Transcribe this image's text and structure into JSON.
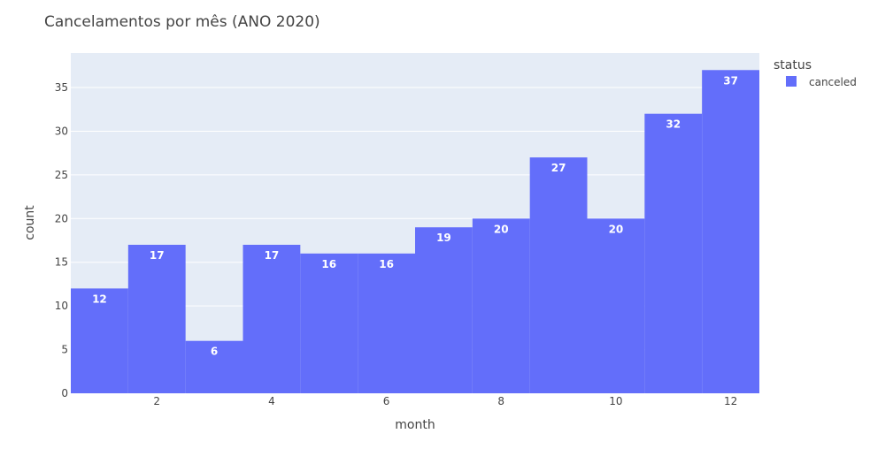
{
  "chart_data": {
    "type": "bar",
    "title": "Cancelamentos por mês (ANO 2020)",
    "xlabel": "month",
    "ylabel": "count",
    "categories": [
      1,
      2,
      3,
      4,
      5,
      6,
      7,
      8,
      9,
      10,
      11,
      12
    ],
    "series": [
      {
        "name": "canceled",
        "values": [
          12,
          17,
          6,
          17,
          16,
          16,
          19,
          20,
          27,
          20,
          32,
          37
        ],
        "color": "#636efa"
      }
    ],
    "x_ticks": [
      2,
      4,
      6,
      8,
      10,
      12
    ],
    "y_ticks": [
      0,
      5,
      10,
      15,
      20,
      25,
      30,
      35
    ],
    "xlim": [
      0.5,
      12.5
    ],
    "ylim": [
      0,
      38.95
    ],
    "grid": true,
    "legend": {
      "title": "status",
      "placement": "top-right"
    },
    "plot_background": "#e5ecf6",
    "gridline_color": "#ffffff"
  }
}
